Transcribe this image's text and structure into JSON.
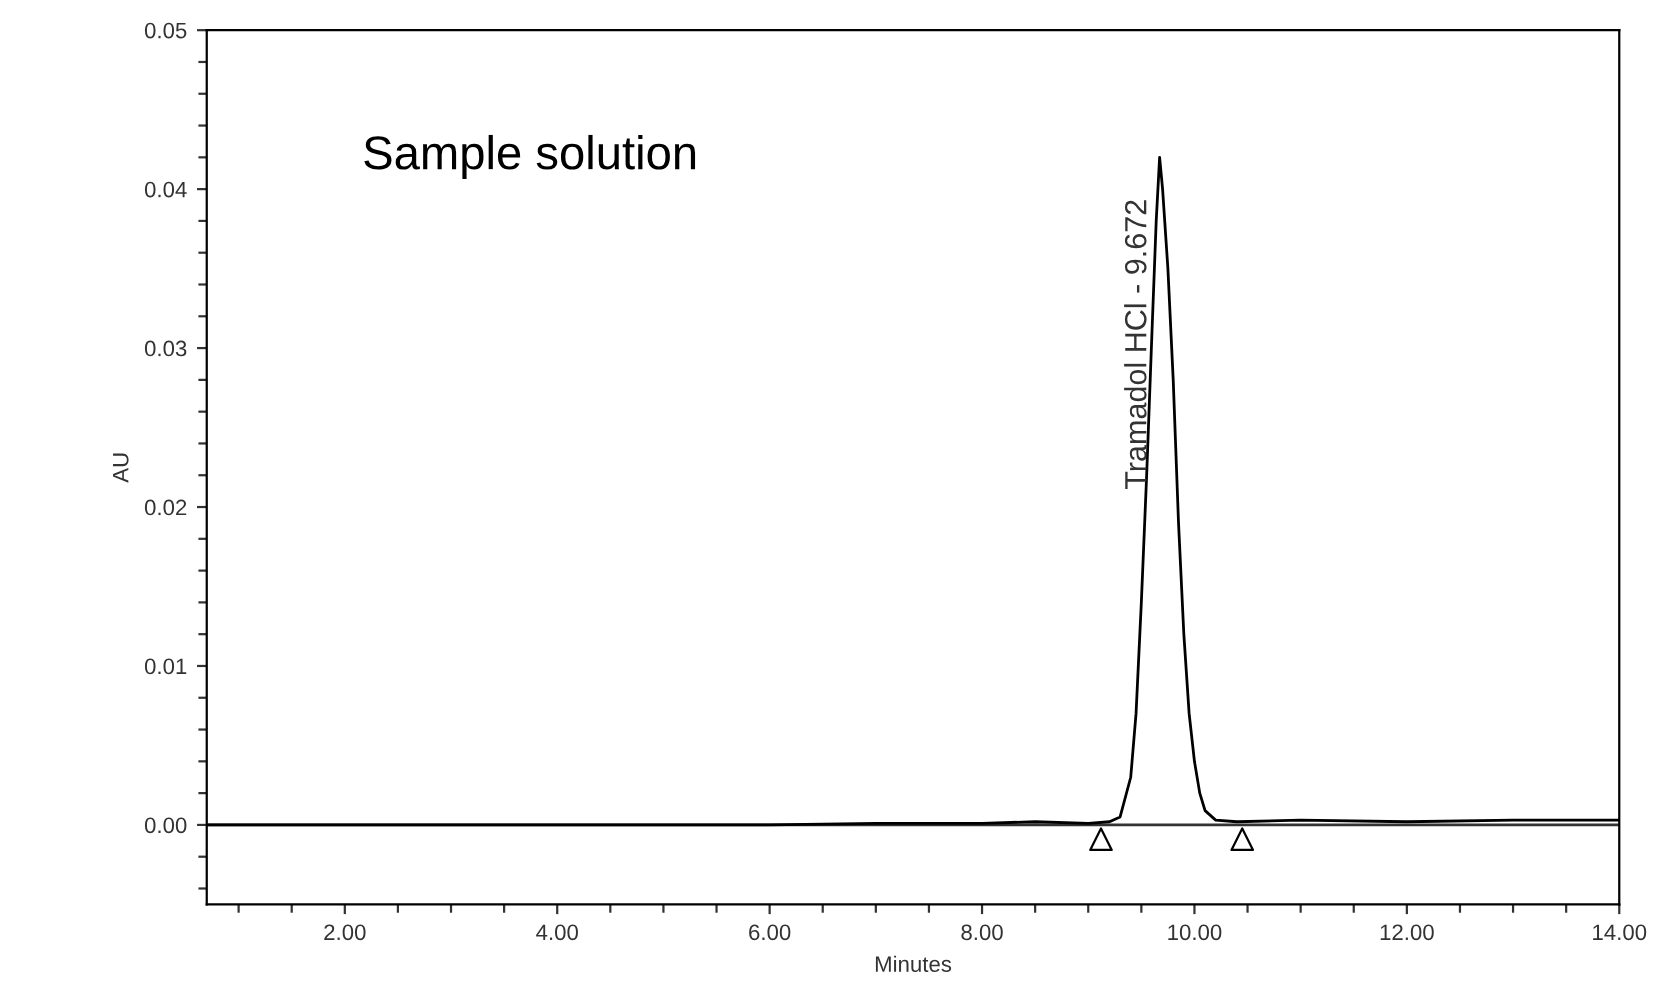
{
  "chart_data": {
    "type": "line",
    "xlabel": "Minutes",
    "ylabel": "AU",
    "xlim": [
      0.7,
      14.0
    ],
    "ylim": [
      -0.005,
      0.05
    ],
    "xticks": [
      {
        "value": 1.0,
        "label": null
      },
      {
        "value": 1.5,
        "label": null
      },
      {
        "value": 2.0,
        "label": "2.00"
      },
      {
        "value": 2.5,
        "label": null
      },
      {
        "value": 3.0,
        "label": null
      },
      {
        "value": 3.5,
        "label": null
      },
      {
        "value": 4.0,
        "label": "4.00"
      },
      {
        "value": 4.5,
        "label": null
      },
      {
        "value": 5.0,
        "label": null
      },
      {
        "value": 5.5,
        "label": null
      },
      {
        "value": 6.0,
        "label": "6.00"
      },
      {
        "value": 6.5,
        "label": null
      },
      {
        "value": 7.0,
        "label": null
      },
      {
        "value": 7.5,
        "label": null
      },
      {
        "value": 8.0,
        "label": "8.00"
      },
      {
        "value": 8.5,
        "label": null
      },
      {
        "value": 9.0,
        "label": null
      },
      {
        "value": 9.5,
        "label": null
      },
      {
        "value": 10.0,
        "label": "10.00"
      },
      {
        "value": 10.5,
        "label": null
      },
      {
        "value": 11.0,
        "label": null
      },
      {
        "value": 11.5,
        "label": null
      },
      {
        "value": 12.0,
        "label": "12.00"
      },
      {
        "value": 12.5,
        "label": null
      },
      {
        "value": 13.0,
        "label": null
      },
      {
        "value": 13.5,
        "label": null
      },
      {
        "value": 14.0,
        "label": "14.00"
      }
    ],
    "yticks": [
      {
        "value": -0.004,
        "label": null
      },
      {
        "value": -0.002,
        "label": null
      },
      {
        "value": 0.0,
        "label": "0.00"
      },
      {
        "value": 0.002,
        "label": null
      },
      {
        "value": 0.004,
        "label": null
      },
      {
        "value": 0.006,
        "label": null
      },
      {
        "value": 0.008,
        "label": null
      },
      {
        "value": 0.01,
        "label": "0.01"
      },
      {
        "value": 0.012,
        "label": null
      },
      {
        "value": 0.014,
        "label": null
      },
      {
        "value": 0.016,
        "label": null
      },
      {
        "value": 0.018,
        "label": null
      },
      {
        "value": 0.02,
        "label": "0.02"
      },
      {
        "value": 0.022,
        "label": null
      },
      {
        "value": 0.024,
        "label": null
      },
      {
        "value": 0.026,
        "label": null
      },
      {
        "value": 0.028,
        "label": null
      },
      {
        "value": 0.03,
        "label": "0.03"
      },
      {
        "value": 0.032,
        "label": null
      },
      {
        "value": 0.034,
        "label": null
      },
      {
        "value": 0.036,
        "label": null
      },
      {
        "value": 0.038,
        "label": null
      },
      {
        "value": 0.04,
        "label": "0.04"
      },
      {
        "value": 0.042,
        "label": null
      },
      {
        "value": 0.044,
        "label": null
      },
      {
        "value": 0.046,
        "label": null
      },
      {
        "value": 0.048,
        "label": null
      },
      {
        "value": 0.05,
        "label": "0.05"
      }
    ],
    "grid": false,
    "ref_lines": [
      {
        "axis": "y",
        "value": 0.0,
        "color": "#333333"
      }
    ],
    "series": [
      {
        "color": "#000000",
        "marker": "none",
        "x": [
          0.7,
          2.0,
          4.0,
          6.0,
          7.0,
          8.0,
          8.5,
          9.0,
          9.2,
          9.3,
          9.4,
          9.45,
          9.5,
          9.55,
          9.6,
          9.64,
          9.672,
          9.7,
          9.75,
          9.8,
          9.85,
          9.9,
          9.95,
          10.0,
          10.05,
          10.1,
          10.2,
          10.4,
          11.0,
          12.0,
          13.0,
          14.0
        ],
        "values": [
          0.0,
          0.0,
          0.0,
          0.0,
          0.0001,
          0.0001,
          0.0002,
          0.0001,
          0.0002,
          0.0005,
          0.003,
          0.007,
          0.014,
          0.022,
          0.031,
          0.038,
          0.042,
          0.04,
          0.035,
          0.028,
          0.019,
          0.012,
          0.007,
          0.004,
          0.002,
          0.0009,
          0.0003,
          0.0002,
          0.0003,
          0.0002,
          0.0003,
          0.0003
        ]
      },
      {
        "type": "scatter",
        "color": "#000000",
        "marker": "triangle",
        "x": [
          9.12,
          10.45
        ],
        "values": [
          -0.0009,
          -0.0009
        ]
      }
    ],
    "annotations": [
      "Sample solution",
      {
        "text": "Tramadol HCl - 9.672",
        "x": 9.672,
        "y": 0.042
      }
    ]
  }
}
